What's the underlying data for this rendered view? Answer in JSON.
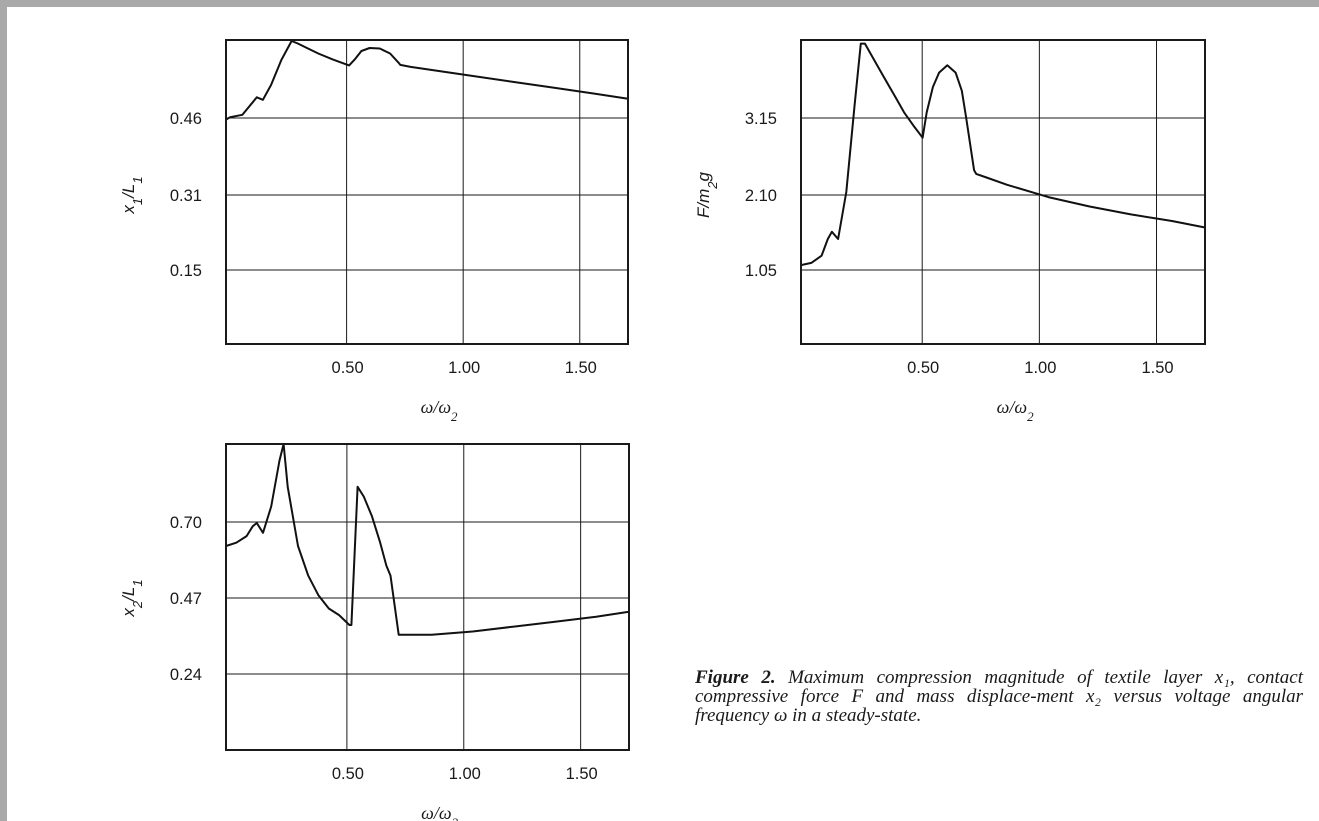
{
  "caption": {
    "label": "Figure 2.",
    "text": "Maximum compression magnitude of textile layer x₁, contact compressive force F and mass displace-ment x₂ versus voltage angular frequency ω in a steady-state."
  },
  "chart_data": [
    {
      "type": "line",
      "xlabel": "ω/ω2",
      "ylabel": "x1/L1",
      "xlim": [
        0,
        1.96
      ],
      "ylim": [
        0,
        0.61
      ],
      "xticks": [
        "0.50",
        "1.00",
        "1.50"
      ],
      "yticks": [
        "0.46",
        "0.31",
        "0.15"
      ],
      "grid": true,
      "x": [
        0.0,
        0.02,
        0.08,
        0.11,
        0.15,
        0.18,
        0.22,
        0.27,
        0.32,
        0.35,
        0.4,
        0.45,
        0.52,
        0.6,
        0.63,
        0.66,
        0.7,
        0.75,
        0.8,
        0.84,
        0.85,
        0.9,
        1.0,
        1.2,
        1.4,
        1.6,
        1.8,
        1.96
      ],
      "y": [
        0.45,
        0.455,
        0.46,
        0.475,
        0.495,
        0.49,
        0.52,
        0.57,
        0.608,
        0.603,
        0.593,
        0.583,
        0.571,
        0.559,
        0.572,
        0.588,
        0.594,
        0.593,
        0.583,
        0.565,
        0.56,
        0.556,
        0.55,
        0.538,
        0.526,
        0.514,
        0.502,
        0.492
      ]
    },
    {
      "type": "line",
      "xlabel": "ω/ω2",
      "ylabel": "F/m2g",
      "xlim": [
        0,
        1.96
      ],
      "ylim": [
        0,
        4.2
      ],
      "xticks": [
        "0.50",
        "1.00",
        "1.50"
      ],
      "yticks": [
        "3.15",
        "2.10",
        "1.05"
      ],
      "grid": true,
      "x": [
        0.0,
        0.05,
        0.1,
        0.13,
        0.15,
        0.18,
        0.22,
        0.26,
        0.29,
        0.31,
        0.35,
        0.4,
        0.45,
        0.5,
        0.55,
        0.59,
        0.61,
        0.64,
        0.67,
        0.71,
        0.75,
        0.78,
        0.8,
        0.84,
        0.85,
        0.9,
        1.0,
        1.2,
        1.4,
        1.6,
        1.8,
        1.96
      ],
      "y": [
        1.09,
        1.12,
        1.22,
        1.45,
        1.55,
        1.45,
        2.1,
        3.3,
        4.15,
        4.15,
        3.95,
        3.7,
        3.45,
        3.2,
        3.0,
        2.85,
        3.2,
        3.55,
        3.75,
        3.85,
        3.75,
        3.5,
        3.15,
        2.4,
        2.35,
        2.3,
        2.2,
        2.03,
        1.9,
        1.79,
        1.7,
        1.61
      ]
    },
    {
      "type": "line",
      "xlabel": "ω/ω2",
      "ylabel": "x2/L1",
      "xlim": [
        0,
        1.96
      ],
      "ylim": [
        0,
        0.93
      ],
      "xticks": [
        "0.50",
        "1.00",
        "1.50"
      ],
      "yticks": [
        "0.70",
        "0.47",
        "0.24"
      ],
      "grid": true,
      "x": [
        0.0,
        0.05,
        0.1,
        0.13,
        0.15,
        0.18,
        0.22,
        0.26,
        0.28,
        0.3,
        0.35,
        0.4,
        0.45,
        0.5,
        0.55,
        0.6,
        0.61,
        0.64,
        0.67,
        0.71,
        0.75,
        0.78,
        0.8,
        0.84,
        0.87,
        0.9,
        1.0,
        1.2,
        1.4,
        1.6,
        1.8,
        1.96
      ],
      "y": [
        0.62,
        0.63,
        0.65,
        0.68,
        0.69,
        0.66,
        0.74,
        0.88,
        0.93,
        0.8,
        0.62,
        0.53,
        0.47,
        0.43,
        0.41,
        0.38,
        0.38,
        0.8,
        0.77,
        0.71,
        0.63,
        0.56,
        0.53,
        0.35,
        0.35,
        0.35,
        0.35,
        0.36,
        0.375,
        0.39,
        0.405,
        0.42
      ]
    }
  ]
}
